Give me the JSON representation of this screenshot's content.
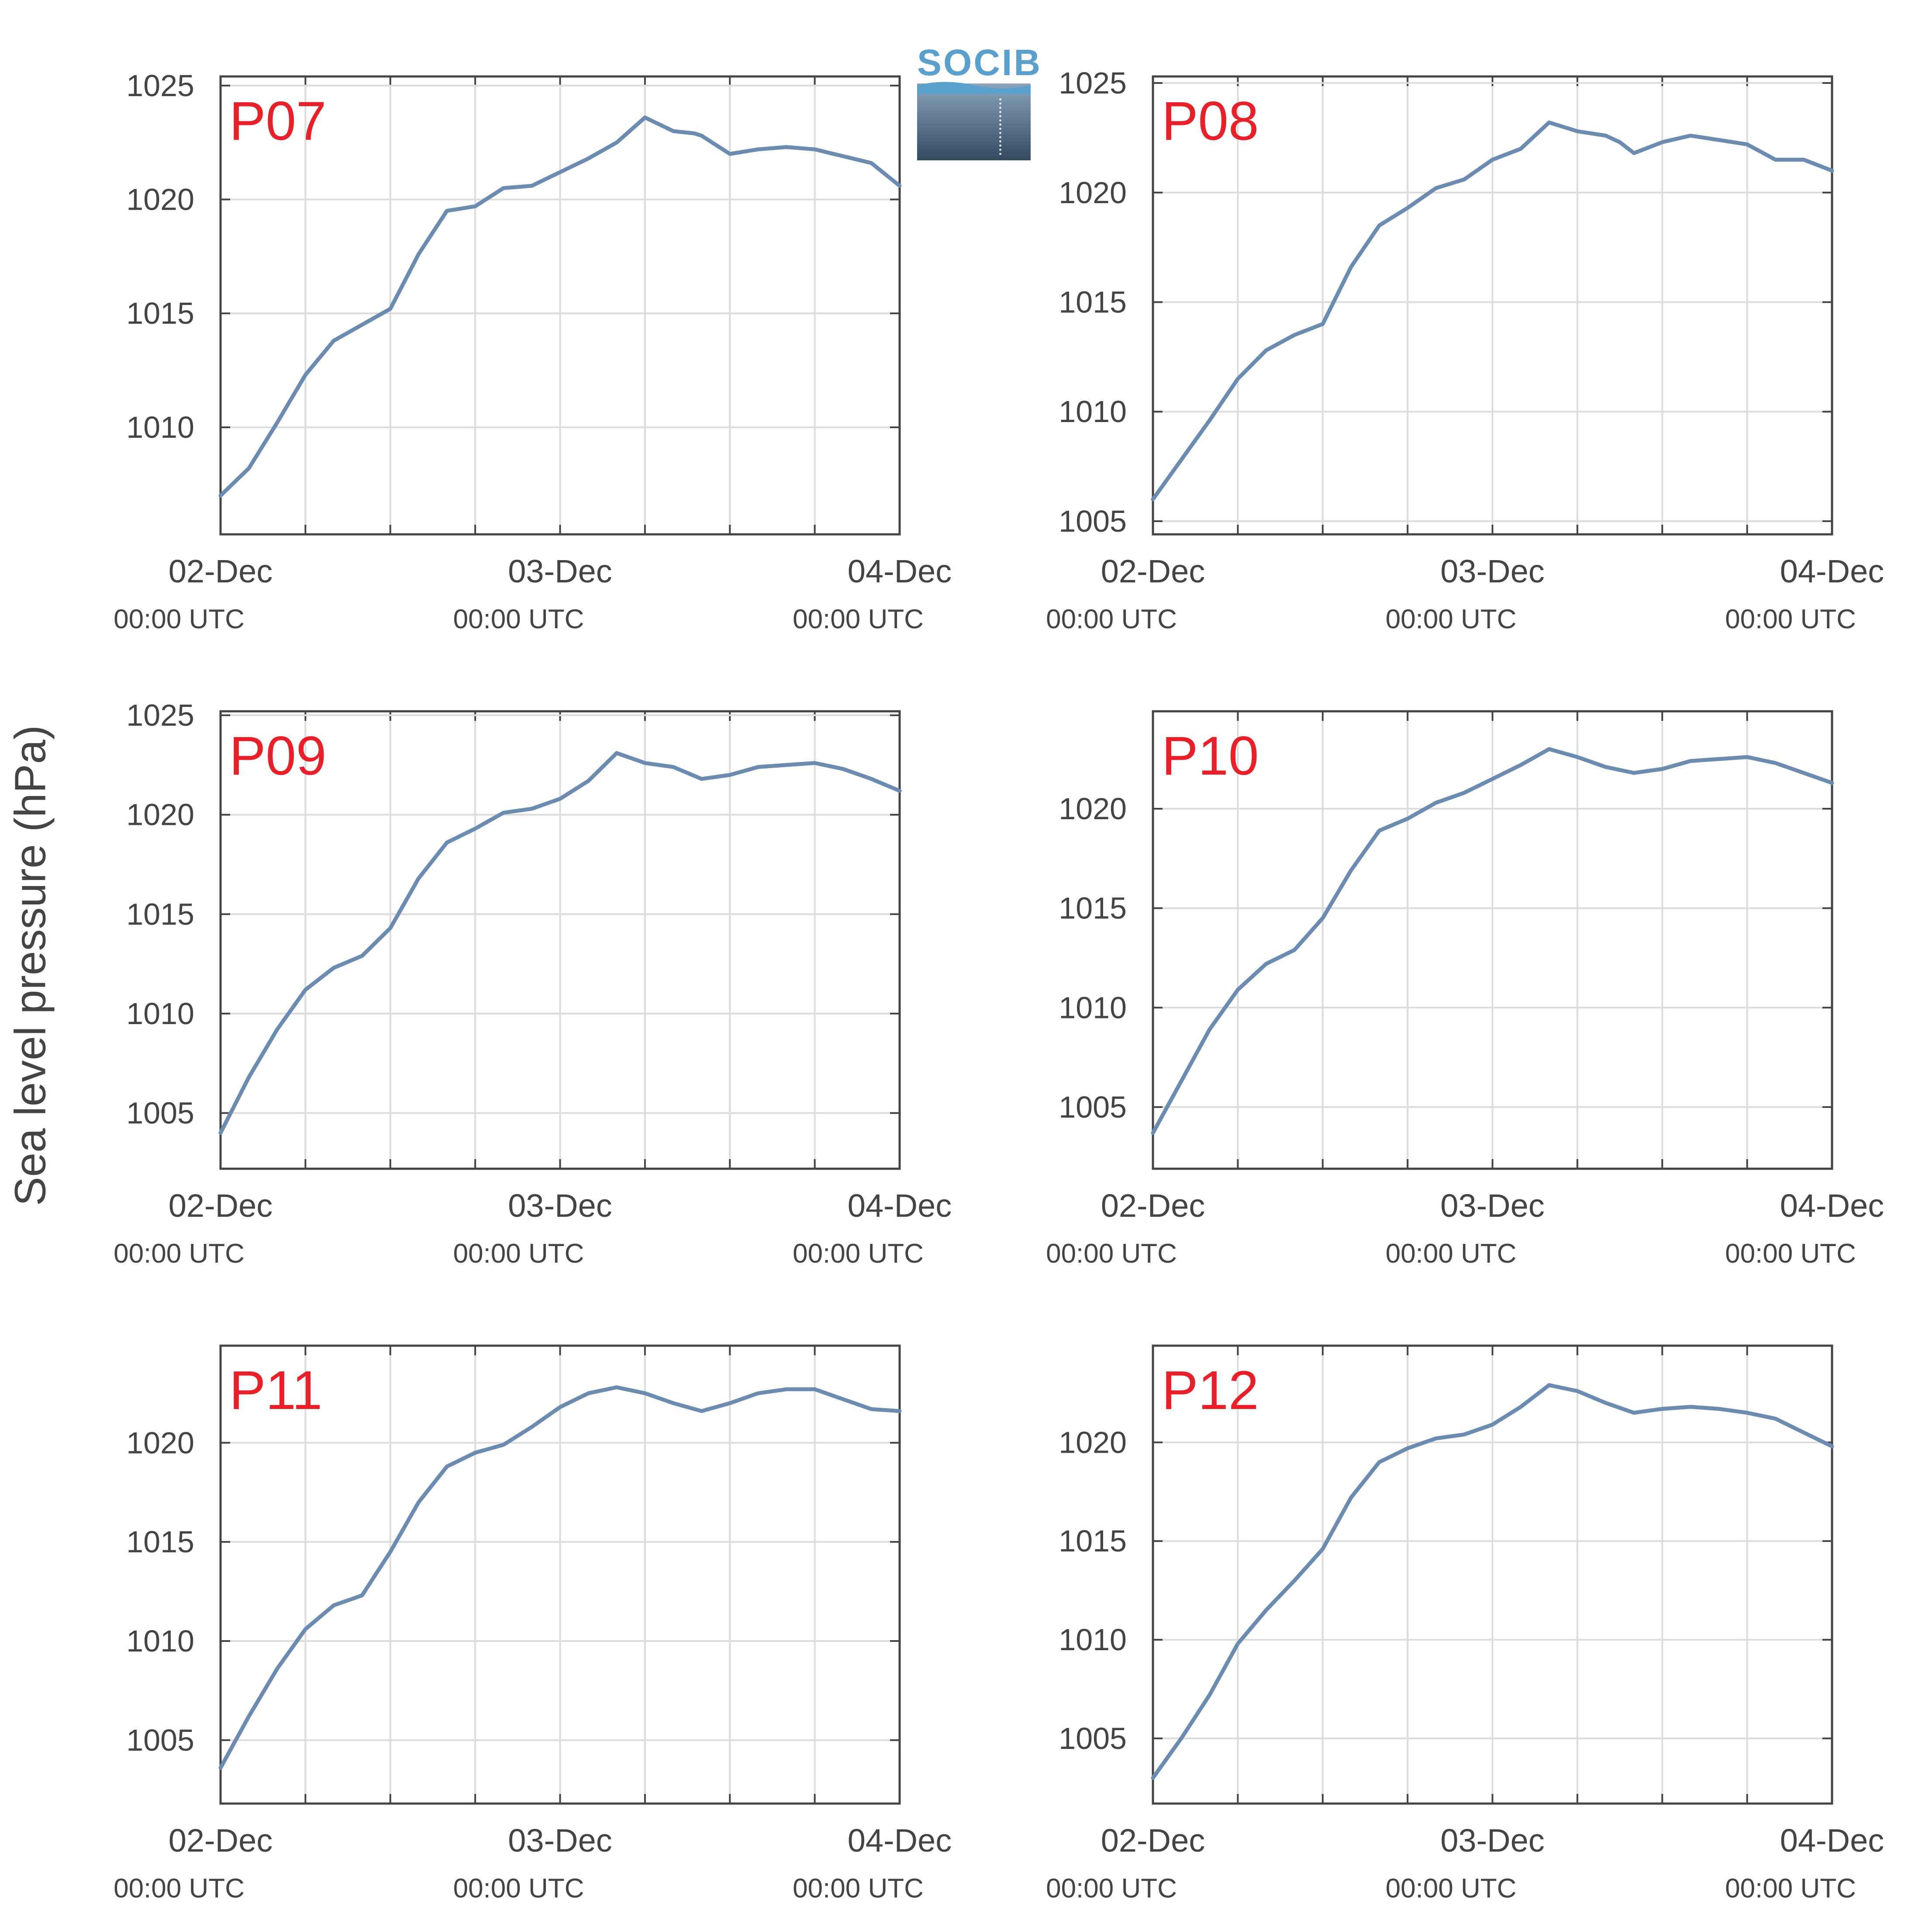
{
  "logo": {
    "text": "SOCIB",
    "color": "#5aa0cc",
    "icon": "socib-logo"
  },
  "ylabel": "Sea level pressure (hPa)",
  "colors": {
    "line": "#6b8bb0",
    "tag": "#e8202a",
    "axis": "#444444",
    "grid": "#dcdcdc"
  },
  "x_ticks": [
    {
      "t": 0,
      "date": "02-Dec",
      "time": "00:00 UTC"
    },
    {
      "t": 24,
      "date": "03-Dec",
      "time": "00:00 UTC"
    },
    {
      "t": 48,
      "date": "04-Dec",
      "time": "00:00 UTC"
    }
  ],
  "chart_data": [
    {
      "type": "line",
      "panel": "P07",
      "x_unit": "hours",
      "xlim": [
        0,
        48
      ],
      "ylim": [
        1005.3,
        1025.4
      ],
      "yticks": [
        1010,
        1015,
        1020,
        1025
      ],
      "x": [
        0,
        2,
        4,
        6,
        8,
        10,
        12,
        14,
        16,
        18,
        20,
        22,
        24,
        26,
        28,
        30,
        32,
        33.5,
        34,
        36,
        38,
        40,
        42,
        44,
        46,
        48
      ],
      "values": [
        1007.0,
        1008.2,
        1010.2,
        1012.3,
        1013.8,
        1014.5,
        1015.2,
        1017.6,
        1019.5,
        1019.7,
        1020.5,
        1020.6,
        1021.2,
        1021.8,
        1022.5,
        1023.6,
        1023.0,
        1022.9,
        1022.8,
        1022.0,
        1022.2,
        1022.3,
        1022.2,
        1021.9,
        1021.6,
        1020.6
      ]
    },
    {
      "type": "line",
      "panel": "P08",
      "x_unit": "hours",
      "xlim": [
        0,
        48
      ],
      "ylim": [
        1004.4,
        1025.3
      ],
      "yticks": [
        1005,
        1010,
        1015,
        1020,
        1025
      ],
      "x": [
        0,
        2,
        4,
        6,
        8,
        10,
        12,
        14,
        16,
        18,
        20,
        22,
        24,
        26,
        28,
        30,
        32,
        33,
        34,
        36,
        38,
        40,
        42,
        44,
        46,
        48
      ],
      "values": [
        1006.0,
        1007.8,
        1009.6,
        1011.5,
        1012.8,
        1013.5,
        1014.0,
        1016.6,
        1018.5,
        1019.3,
        1020.2,
        1020.6,
        1021.5,
        1022.0,
        1023.2,
        1022.8,
        1022.6,
        1022.3,
        1021.8,
        1022.3,
        1022.6,
        1022.4,
        1022.2,
        1021.5,
        1021.5,
        1021.0
      ]
    },
    {
      "type": "line",
      "panel": "P09",
      "x_unit": "hours",
      "xlim": [
        0,
        48
      ],
      "ylim": [
        1002.2,
        1025.2
      ],
      "yticks": [
        1005,
        1010,
        1015,
        1020,
        1025
      ],
      "x": [
        0,
        2,
        4,
        6,
        8,
        10,
        12,
        14,
        16,
        18,
        20,
        22,
        24,
        26,
        28,
        30,
        32,
        34,
        36,
        38,
        40,
        42,
        44,
        46,
        48
      ],
      "values": [
        1004.0,
        1006.8,
        1009.2,
        1011.2,
        1012.3,
        1012.9,
        1014.3,
        1016.8,
        1018.6,
        1019.3,
        1020.1,
        1020.3,
        1020.8,
        1021.7,
        1023.1,
        1022.6,
        1022.4,
        1021.8,
        1022.0,
        1022.4,
        1022.5,
        1022.6,
        1022.3,
        1021.8,
        1021.2
      ]
    },
    {
      "type": "line",
      "panel": "P10",
      "x_unit": "hours",
      "xlim": [
        0,
        48
      ],
      "ylim": [
        1001.9,
        1024.9
      ],
      "yticks": [
        1005,
        1010,
        1015,
        1020
      ],
      "x": [
        0,
        2,
        4,
        6,
        8,
        10,
        12,
        14,
        16,
        18,
        20,
        22,
        24,
        26,
        28,
        30,
        32,
        34,
        36,
        38,
        40,
        42,
        44,
        46,
        48
      ],
      "values": [
        1003.7,
        1006.3,
        1008.9,
        1010.9,
        1012.2,
        1012.9,
        1014.5,
        1016.9,
        1018.9,
        1019.5,
        1020.3,
        1020.8,
        1021.5,
        1022.2,
        1023.0,
        1022.6,
        1022.1,
        1021.8,
        1022.0,
        1022.4,
        1022.5,
        1022.6,
        1022.3,
        1021.8,
        1021.3
      ]
    },
    {
      "type": "line",
      "panel": "P11",
      "x_unit": "hours",
      "xlim": [
        0,
        48
      ],
      "ylim": [
        1001.8,
        1024.9
      ],
      "yticks": [
        1005,
        1010,
        1015,
        1020
      ],
      "x": [
        0,
        2,
        4,
        6,
        8,
        10,
        12,
        14,
        16,
        18,
        20,
        22,
        24,
        26,
        28,
        30,
        32,
        34,
        36,
        38,
        40,
        42,
        44,
        46,
        48
      ],
      "values": [
        1003.6,
        1006.2,
        1008.6,
        1010.6,
        1011.8,
        1012.3,
        1014.5,
        1017.0,
        1018.8,
        1019.5,
        1019.9,
        1020.8,
        1021.8,
        1022.5,
        1022.8,
        1022.5,
        1022.0,
        1021.6,
        1022.0,
        1022.5,
        1022.7,
        1022.7,
        1022.2,
        1021.7,
        1021.6
      ]
    },
    {
      "type": "line",
      "panel": "P12",
      "x_unit": "hours",
      "xlim": [
        0,
        48
      ],
      "ylim": [
        1001.7,
        1024.9
      ],
      "yticks": [
        1005,
        1010,
        1015,
        1020
      ],
      "x": [
        0,
        2,
        4,
        6,
        8,
        10,
        12,
        14,
        16,
        18,
        20,
        22,
        24,
        26,
        28,
        30,
        32,
        34,
        36,
        38,
        40,
        42,
        44,
        46,
        48
      ],
      "values": [
        1003.0,
        1005.0,
        1007.2,
        1009.8,
        1011.5,
        1013.0,
        1014.6,
        1017.2,
        1019.0,
        1019.7,
        1020.2,
        1020.4,
        1020.9,
        1021.8,
        1022.9,
        1022.6,
        1022.0,
        1021.5,
        1021.7,
        1021.8,
        1021.7,
        1021.5,
        1021.2,
        1020.5,
        1019.8
      ]
    }
  ]
}
